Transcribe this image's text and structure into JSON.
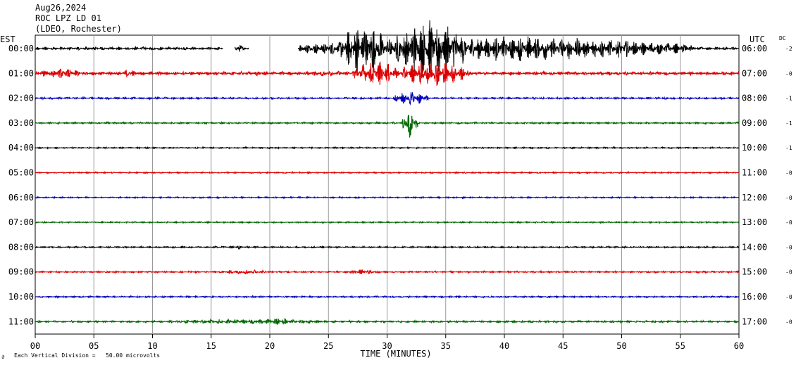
{
  "chart_data": {
    "type": "line",
    "title_lines": [
      "Aug26,2024",
      "ROC LPZ LD 01",
      "(LDEO, Rochester)"
    ],
    "left_axis_label": "EST",
    "right_axis_label": "UTC",
    "dc_label": "DC",
    "xlabel": "TIME (MINUTES)",
    "xlim": [
      0,
      60
    ],
    "x_ticks": [
      0,
      5,
      10,
      15,
      20,
      25,
      30,
      35,
      40,
      45,
      50,
      55,
      60
    ],
    "x_tick_labels": [
      "00",
      "05",
      "10",
      "15",
      "20",
      "25",
      "30",
      "35",
      "40",
      "45",
      "50",
      "55",
      "60"
    ],
    "footnote": "Each Vertical Division =   50.00 microvolts",
    "footnote_glyph": "∂",
    "trace_colors": [
      "#000000",
      "#dd0000",
      "#0000bb",
      "#006600"
    ],
    "traces": [
      {
        "est": "00:00",
        "utc": "06:00",
        "dc": "-2",
        "noise": 0.18,
        "gaps": [
          [
            16.0,
            17.0
          ],
          [
            18.2,
            22.4
          ]
        ],
        "bursts": [
          {
            "start": 22.5,
            "end": 56,
            "amp": 1.5
          },
          {
            "start": 26,
            "end": 30,
            "amp": 3.2
          },
          {
            "start": 30.5,
            "end": 37,
            "amp": 3.6
          },
          {
            "start": 37,
            "end": 46,
            "amp": 1.6
          },
          {
            "start": 17.1,
            "end": 17.6,
            "amp": 0.8
          }
        ]
      },
      {
        "est": "01:00",
        "utc": "07:00",
        "dc": "-0",
        "noise": 0.22,
        "bursts": [
          {
            "start": 0,
            "end": 4.5,
            "amp": 0.6
          },
          {
            "start": 7.5,
            "end": 8.5,
            "amp": 0.6
          },
          {
            "start": 18.5,
            "end": 19.8,
            "amp": 0.35
          },
          {
            "start": 22,
            "end": 27,
            "amp": 0.35
          },
          {
            "start": 27,
            "end": 31,
            "amp": 1.5
          },
          {
            "start": 31,
            "end": 37,
            "amp": 1.6
          }
        ]
      },
      {
        "est": "02:00",
        "utc": "08:00",
        "dc": "-1",
        "noise": 0.12,
        "bursts": [
          {
            "start": 30.5,
            "end": 33.5,
            "amp": 0.9
          }
        ]
      },
      {
        "est": "03:00",
        "utc": "09:00",
        "dc": "-1",
        "noise": 0.1,
        "bursts": [
          {
            "start": 31.3,
            "end": 32.6,
            "amp": 1.7
          }
        ]
      },
      {
        "est": "04:00",
        "utc": "10:00",
        "dc": "-1",
        "noise": 0.08,
        "bursts": []
      },
      {
        "est": "05:00",
        "utc": "11:00",
        "dc": "-0",
        "noise": 0.08,
        "bursts": []
      },
      {
        "est": "06:00",
        "utc": "12:00",
        "dc": "-0",
        "noise": 0.08,
        "bursts": []
      },
      {
        "est": "07:00",
        "utc": "13:00",
        "dc": "-0",
        "noise": 0.08,
        "bursts": []
      },
      {
        "est": "08:00",
        "utc": "14:00",
        "dc": "-0",
        "noise": 0.09,
        "bursts": [
          {
            "start": 17.1,
            "end": 17.6,
            "amp": 0.3
          },
          {
            "start": 20.2,
            "end": 21.0,
            "amp": 0.12
          }
        ]
      },
      {
        "est": "09:00",
        "utc": "15:00",
        "dc": "-0",
        "noise": 0.1,
        "bursts": [
          {
            "start": 15.5,
            "end": 20,
            "amp": 0.28
          },
          {
            "start": 26.5,
            "end": 29.5,
            "amp": 0.32
          }
        ]
      },
      {
        "est": "10:00",
        "utc": "16:00",
        "dc": "-0",
        "noise": 0.09,
        "bursts": []
      },
      {
        "est": "11:00",
        "utc": "17:00",
        "dc": "-0",
        "noise": 0.12,
        "bursts": [
          {
            "start": 10.5,
            "end": 26,
            "amp": 0.3
          },
          {
            "start": 19.2,
            "end": 22.2,
            "amp": 0.5
          }
        ]
      }
    ]
  }
}
